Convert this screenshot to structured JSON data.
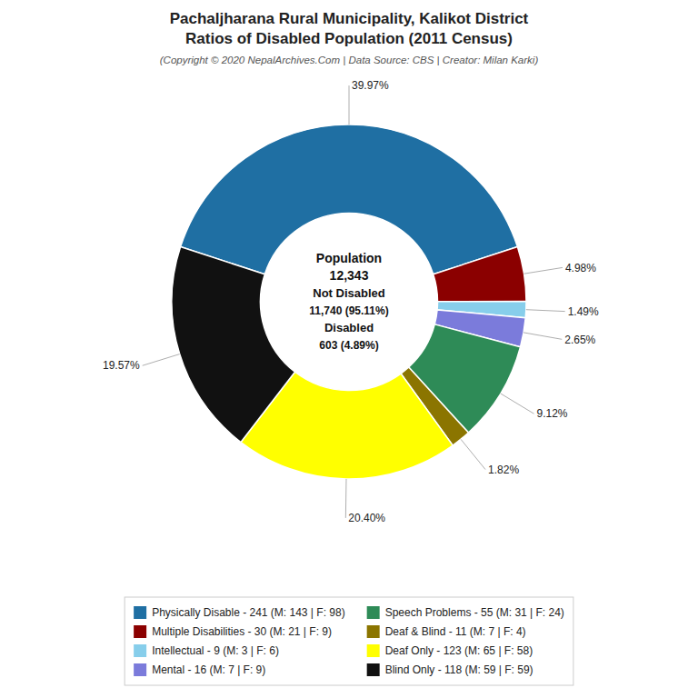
{
  "chart_data": {
    "type": "donut",
    "title": "Pachaljharana Rural Municipality, Kalikot District\nRatios of Disabled Population (2011 Census)",
    "subtitle": "(Copyright © 2020 NepalArchives.Com | Data Source: CBS | Creator: Milan Karki)",
    "categories": [
      "Physically Disable - 241 (M: 143 | F: 98)",
      "Multiple Disabilities - 30 (M: 21 | F: 9)",
      "Intellectual - 9 (M: 3 | F: 6)",
      "Mental - 16 (M: 7 | F: 9)",
      "Speech Problems - 55 (M: 31 | F: 24)",
      "Deaf & Blind - 11 (M: 7 | F: 4)",
      "Deaf Only - 123 (M: 65 | F: 58)",
      "Blind Only - 118 (M: 59 | F: 59)"
    ],
    "values": [
      39.97,
      4.98,
      1.49,
      2.65,
      9.12,
      1.82,
      20.4,
      19.57
    ],
    "value_labels": [
      "39.97%",
      "4.98%",
      "1.49%",
      "2.65%",
      "9.12%",
      "1.82%",
      "20.40%",
      "19.57%"
    ],
    "colors": [
      "#1f6fa3",
      "#8b0000",
      "#87ceeb",
      "#7b7bdb",
      "#2e8b57",
      "#8b7500",
      "#ffff00",
      "#111111"
    ],
    "data_labels": true,
    "legend": "bottom",
    "annotations": [
      "Population",
      "12,343",
      "Not Disabled",
      "11,740 (95.11%)",
      "Disabled",
      "603 (4.89%)"
    ]
  }
}
